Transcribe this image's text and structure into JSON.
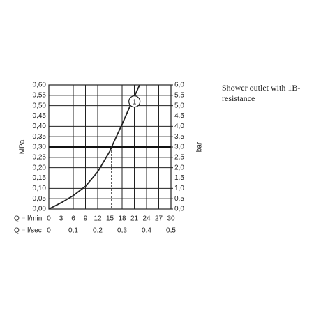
{
  "chart_data": {
    "type": "line",
    "note": [
      "Shower outlet with 1B-",
      "resistance"
    ],
    "ylabel": "MPa",
    "y2label": "bar",
    "xlabel": "Q = l/min",
    "x2label": "Q = l/sec",
    "series": [
      {
        "name": "1",
        "color": "#222222",
        "x": [
          0,
          3,
          6,
          9,
          12,
          15,
          15.4,
          18,
          20,
          22.3
        ],
        "values": [
          0,
          0.03,
          0.065,
          0.11,
          0.18,
          0.28,
          0.3,
          0.41,
          0.5,
          0.6
        ]
      }
    ],
    "xlim": [
      0,
      30
    ],
    "xticks": [
      0,
      3,
      6,
      9,
      12,
      15,
      18,
      21,
      24,
      27,
      30
    ],
    "x2lim": [
      0,
      0.5
    ],
    "x2ticks": [
      0,
      {
        "value": 0.1,
        "label": "0,1"
      },
      {
        "value": 0.2,
        "label": "0,2"
      },
      {
        "value": 0.3,
        "label": "0,3"
      },
      {
        "value": 0.4,
        "label": "0,4"
      },
      {
        "value": 0.5,
        "label": "0,5"
      }
    ],
    "ylim": [
      0,
      0.6
    ],
    "yticks": [
      {
        "value": 0,
        "label": "0,00"
      },
      {
        "value": 0.05,
        "label": "0,05"
      },
      {
        "value": 0.1,
        "label": "0,10"
      },
      {
        "value": 0.15,
        "label": "0,15"
      },
      {
        "value": 0.2,
        "label": "0,20"
      },
      {
        "value": 0.25,
        "label": "0,25"
      },
      {
        "value": 0.3,
        "label": "0,30"
      },
      {
        "value": 0.35,
        "label": "0,35"
      },
      {
        "value": 0.4,
        "label": "0,40"
      },
      {
        "value": 0.45,
        "label": "0,45"
      },
      {
        "value": 0.5,
        "label": "0,50"
      },
      {
        "value": 0.55,
        "label": "0,55"
      },
      {
        "value": 0.6,
        "label": "0,60"
      }
    ],
    "y2lim": [
      0,
      6
    ],
    "y2ticks": [
      {
        "value": 0,
        "label": "0,0"
      },
      {
        "value": 0.5,
        "label": "0,5"
      },
      {
        "value": 1,
        "label": "1,0"
      },
      {
        "value": 1.5,
        "label": "1,5"
      },
      {
        "value": 2,
        "label": "2,0"
      },
      {
        "value": 2.5,
        "label": "2,5"
      },
      {
        "value": 3,
        "label": "3,0"
      },
      {
        "value": 3.5,
        "label": "3,5"
      },
      {
        "value": 4,
        "label": "4,0"
      },
      {
        "value": 4.5,
        "label": "4,5"
      },
      {
        "value": 5,
        "label": "5,0"
      },
      {
        "value": 5.5,
        "label": "5,5"
      },
      {
        "value": 6,
        "label": "6,0"
      }
    ],
    "reference_pressure": 0.3,
    "reference_flow": 15.4,
    "grid": true
  }
}
